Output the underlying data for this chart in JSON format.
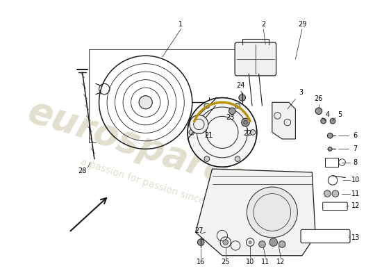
{
  "bg_color": "#ffffff",
  "line_color": "#1a1a1a",
  "watermark_color": "#c8bfa0",
  "fig_w": 5.5,
  "fig_h": 4.0,
  "dpi": 100
}
